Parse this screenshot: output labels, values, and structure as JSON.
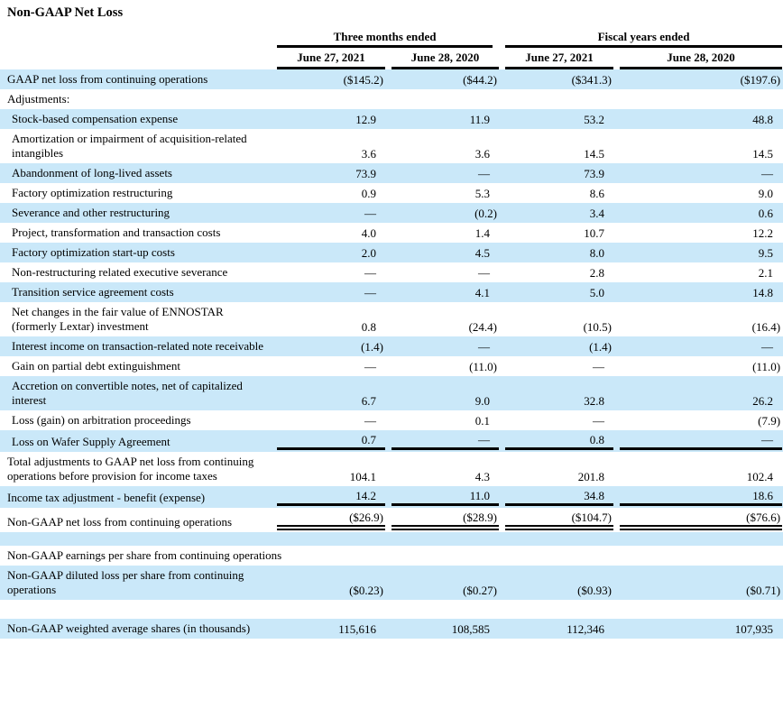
{
  "page": {
    "title": "Non-GAAP Net Loss"
  },
  "colors": {
    "row_shade": "#cae8f9",
    "rule": "#000000",
    "text": "#000000",
    "background": "#ffffff"
  },
  "table": {
    "col_groups": [
      "Three months ended",
      "Fiscal years ended"
    ],
    "sub_headers": [
      "June 27, 2021",
      "June 28, 2020",
      "June 27, 2021",
      "June 28, 2020"
    ],
    "rows": [
      {
        "label": "GAAP net loss from continuing operations",
        "values": [
          "($145.2)",
          "($44.2)",
          "($341.3)",
          "($197.6)"
        ],
        "shade": true
      },
      {
        "label": "Adjustments:",
        "values": null,
        "shade": false
      },
      {
        "label": "Stock-based compensation expense",
        "values": [
          "12.9",
          "11.9",
          "53.2",
          "48.8"
        ],
        "shade": true,
        "indent": true
      },
      {
        "label": "Amortization or impairment of acquisition-related intangibles",
        "values": [
          "3.6",
          "3.6",
          "14.5",
          "14.5"
        ],
        "shade": false,
        "indent": true
      },
      {
        "label": "Abandonment of long-lived assets",
        "values": [
          "73.9",
          "—",
          "73.9",
          "—"
        ],
        "shade": true,
        "indent": true
      },
      {
        "label": "Factory optimization restructuring",
        "values": [
          "0.9",
          "5.3",
          "8.6",
          "9.0"
        ],
        "shade": false,
        "indent": true
      },
      {
        "label": "Severance and other restructuring",
        "values": [
          "—",
          "(0.2)",
          "3.4",
          "0.6"
        ],
        "shade": true,
        "indent": true
      },
      {
        "label": "Project, transformation and transaction costs",
        "values": [
          "4.0",
          "1.4",
          "10.7",
          "12.2"
        ],
        "shade": false,
        "indent": true
      },
      {
        "label": "Factory optimization start-up costs",
        "values": [
          "2.0",
          "4.5",
          "8.0",
          "9.5"
        ],
        "shade": true,
        "indent": true
      },
      {
        "label": "Non-restructuring related executive severance",
        "values": [
          "—",
          "—",
          "2.8",
          "2.1"
        ],
        "shade": false,
        "indent": true
      },
      {
        "label": "Transition service agreement costs",
        "values": [
          "—",
          "4.1",
          "5.0",
          "14.8"
        ],
        "shade": true,
        "indent": true
      },
      {
        "label": "Net changes in the fair value of ENNOSTAR (formerly Lextar) investment",
        "values": [
          "0.8",
          "(24.4)",
          "(10.5)",
          "(16.4)"
        ],
        "shade": false,
        "indent": true
      },
      {
        "label": "Interest income on transaction-related note receivable",
        "values": [
          "(1.4)",
          "—",
          "(1.4)",
          "—"
        ],
        "shade": true,
        "indent": true
      },
      {
        "label": "Gain on partial debt extinguishment",
        "values": [
          "—",
          "(11.0)",
          "—",
          "(11.0)"
        ],
        "shade": false,
        "indent": true
      },
      {
        "label": "Accretion on convertible notes, net of capitalized interest",
        "values": [
          "6.7",
          "9.0",
          "32.8",
          "26.2"
        ],
        "shade": true,
        "indent": true
      },
      {
        "label": "Loss (gain) on arbitration proceedings",
        "values": [
          "—",
          "0.1",
          "—",
          "(7.9)"
        ],
        "shade": false,
        "indent": true
      },
      {
        "label": "Loss on Wafer Supply Agreement",
        "values": [
          "0.7",
          "—",
          "0.8",
          "—"
        ],
        "shade": true,
        "indent": true,
        "line": "single"
      },
      {
        "label": "Total adjustments to GAAP net loss from continuing operations before provision for income taxes",
        "values": [
          "104.1",
          "4.3",
          "201.8",
          "102.4"
        ],
        "shade": false
      },
      {
        "label": "Income tax adjustment - benefit (expense)",
        "values": [
          "14.2",
          "11.0",
          "34.8",
          "18.6"
        ],
        "shade": true,
        "line": "single"
      },
      {
        "label": "Non-GAAP net loss from continuing operations",
        "values": [
          "($26.9)",
          "($28.9)",
          "($104.7)",
          "($76.6)"
        ],
        "shade": false,
        "line": "double"
      },
      {
        "spacer": true,
        "shade": true
      },
      {
        "label": "Non-GAAP earnings per share from continuing operations",
        "values": null,
        "shade": false
      },
      {
        "label": "Non-GAAP diluted loss per share from continuing operations",
        "values": [
          "($0.23)",
          "($0.27)",
          "($0.93)",
          "($0.71)"
        ],
        "shade": true
      },
      {
        "spacer": true,
        "shade": false
      },
      {
        "label": "Non-GAAP weighted average shares (in thousands)",
        "values": [
          "115,616",
          "108,585",
          "112,346",
          "107,935"
        ],
        "shade": true
      }
    ]
  }
}
